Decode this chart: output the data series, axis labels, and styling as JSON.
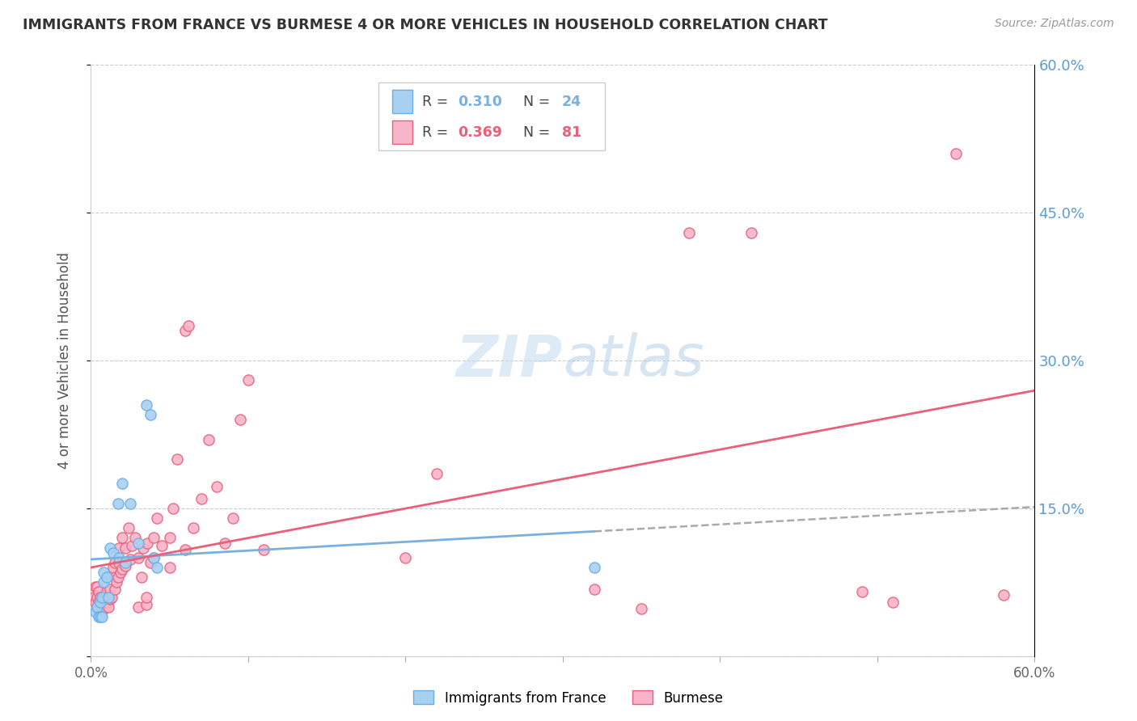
{
  "title": "IMMIGRANTS FROM FRANCE VS BURMESE 4 OR MORE VEHICLES IN HOUSEHOLD CORRELATION CHART",
  "source": "Source: ZipAtlas.com",
  "ylabel": "4 or more Vehicles in Household",
  "xlim": [
    0.0,
    0.6
  ],
  "ylim": [
    0.0,
    0.6
  ],
  "color_france": "#a8d0f0",
  "color_france_edge": "#6aaee8",
  "color_burmese": "#f8b4c8",
  "color_burmese_edge": "#e8607a",
  "color_france_line": "#7ab0e0",
  "color_burmese_line": "#e8607a",
  "color_france_line_dashed": "#aaaaaa",
  "watermark_color": "#cce4f5",
  "france_x": [
    0.003,
    0.004,
    0.005,
    0.006,
    0.006,
    0.007,
    0.007,
    0.008,
    0.008,
    0.01,
    0.011,
    0.012,
    0.014,
    0.017,
    0.018,
    0.02,
    0.022,
    0.025,
    0.03,
    0.035,
    0.038,
    0.04,
    0.042,
    0.32
  ],
  "france_y": [
    0.045,
    0.05,
    0.04,
    0.04,
    0.055,
    0.04,
    0.06,
    0.075,
    0.085,
    0.08,
    0.06,
    0.11,
    0.105,
    0.155,
    0.1,
    0.175,
    0.095,
    0.155,
    0.115,
    0.255,
    0.245,
    0.1,
    0.09,
    0.09
  ],
  "burmese_x": [
    0.002,
    0.003,
    0.003,
    0.004,
    0.004,
    0.004,
    0.005,
    0.005,
    0.005,
    0.006,
    0.006,
    0.007,
    0.007,
    0.007,
    0.008,
    0.008,
    0.009,
    0.009,
    0.01,
    0.01,
    0.01,
    0.011,
    0.011,
    0.012,
    0.012,
    0.013,
    0.014,
    0.015,
    0.015,
    0.015,
    0.016,
    0.017,
    0.018,
    0.018,
    0.019,
    0.02,
    0.02,
    0.022,
    0.022,
    0.024,
    0.025,
    0.026,
    0.028,
    0.03,
    0.03,
    0.032,
    0.033,
    0.035,
    0.035,
    0.036,
    0.038,
    0.04,
    0.04,
    0.042,
    0.045,
    0.05,
    0.05,
    0.052,
    0.055,
    0.06,
    0.06,
    0.062,
    0.065,
    0.07,
    0.075,
    0.08,
    0.085,
    0.09,
    0.095,
    0.1,
    0.11,
    0.2,
    0.22,
    0.32,
    0.35,
    0.38,
    0.42,
    0.49,
    0.51,
    0.55,
    0.58
  ],
  "burmese_y": [
    0.06,
    0.055,
    0.07,
    0.05,
    0.06,
    0.07,
    0.048,
    0.055,
    0.065,
    0.048,
    0.06,
    0.045,
    0.055,
    0.058,
    0.05,
    0.058,
    0.05,
    0.06,
    0.055,
    0.058,
    0.065,
    0.05,
    0.06,
    0.058,
    0.068,
    0.06,
    0.09,
    0.068,
    0.08,
    0.095,
    0.075,
    0.08,
    0.095,
    0.11,
    0.085,
    0.088,
    0.12,
    0.092,
    0.11,
    0.13,
    0.098,
    0.112,
    0.12,
    0.05,
    0.1,
    0.08,
    0.11,
    0.052,
    0.06,
    0.115,
    0.095,
    0.1,
    0.12,
    0.14,
    0.112,
    0.12,
    0.09,
    0.15,
    0.2,
    0.108,
    0.33,
    0.335,
    0.13,
    0.16,
    0.22,
    0.172,
    0.115,
    0.14,
    0.24,
    0.28,
    0.108,
    0.1,
    0.185,
    0.068,
    0.048,
    0.43,
    0.43,
    0.065,
    0.055,
    0.51,
    0.062
  ]
}
